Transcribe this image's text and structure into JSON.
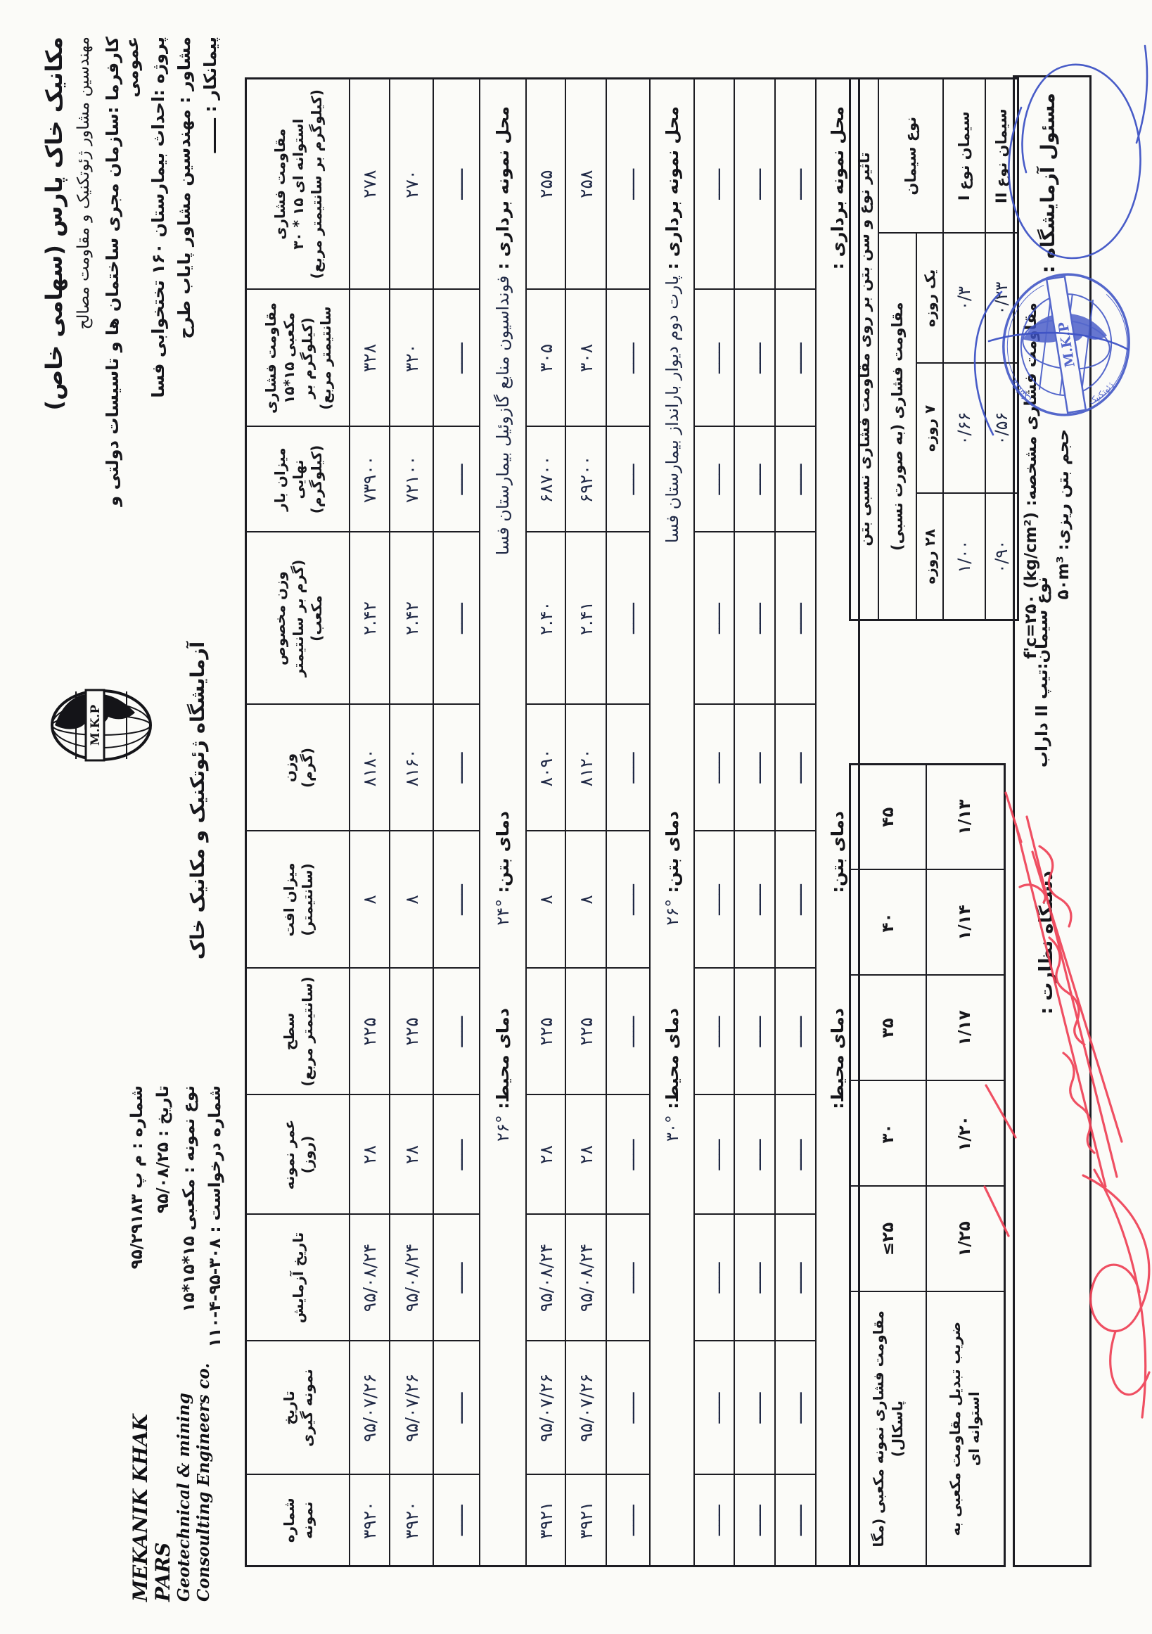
{
  "letterhead": {
    "company_fa": "مکانیک خاک پارس (سهامی خاص)",
    "tagline_fa": "مهندسین مشاور ژئوتکنیک و مقاومت مصالح",
    "client_line": "کارفرما :سازمان مجری ساختمان ها و تاسیسات دولتی و عمومی",
    "project_line": "پروژه :احداث بیمارستان ۱۶۰ تختخوابی فسا",
    "consultant_line": "مشاور : مهندسین مشاور پایاب طرح",
    "contractor_line": "پیمانکار : ــــــ",
    "lab_title": "آزمایشگاه ژئوتکنیک و مکانیک خاک",
    "logo_monogram": "M.K.P",
    "company_en1": "MEKANIK KHAK PARS",
    "company_en2": "Geotechnical & mining",
    "company_en3": "Consoulting Engineers co.",
    "meta_number": "شماره : م پ ۹۵/۲۹۱۸۳",
    "meta_date": "تاریخ : ۹۵/۰۸/۲۵",
    "meta_sample_type": "نوع نمونه : مکعبی ۱۵*۱۵*۱۵",
    "meta_request": "شماره درخواست : ۳۰۸-۹۵-۴-۱۱۰"
  },
  "main_table": {
    "headers": [
      [
        "مقاومت فشاری",
        "استوانه ای ۱۵ * ۳۰",
        "(کیلوگرم بر سانتیمتر مربع)"
      ],
      [
        "مقاومت فشاری",
        "مکعبی ۱۵*۱۵",
        "(کیلوگرم بر سانتیمتر مربع)"
      ],
      [
        "میزان بار نهایی",
        "(کیلوگرم)"
      ],
      [
        "وزن مخصوص",
        "(گرم بر سانتیمتر مکعب)"
      ],
      [
        "وزن",
        "(گرم)"
      ],
      [
        "میزان افت",
        "(سانتیمتر)"
      ],
      [
        "سطح",
        "(سانتیمتر مربع)"
      ],
      [
        "عمر نمونه",
        "(روز)"
      ],
      [
        "تاریخ آزمایش"
      ],
      [
        "تاریخ",
        "نمونه گیری"
      ],
      [
        "شماره نمونه"
      ]
    ],
    "dash": "ــــــ",
    "location_label": "محل نمونه برداری :",
    "concrete_temp_label": "دمای بتن:",
    "ambient_temp_label": "دمای محیط:",
    "sections": [
      {
        "rows": [
          [
            "۲۷۸",
            "۳۲۸",
            "۷۳۹۰۰",
            "۲.۴۲",
            "۸۱۸۰",
            "۸",
            "۲۲۵",
            "۲۸",
            "۹۵/۰۸/۲۴",
            "۹۵/۰۷/۲۶",
            "۳۹۲۰"
          ],
          [
            "۲۷۰",
            "۳۲۰",
            "۷۲۱۰۰",
            "۲.۴۲",
            "۸۱۶۰",
            "۸",
            "۲۲۵",
            "۲۸",
            "۹۵/۰۸/۲۴",
            "۹۵/۰۷/۲۶",
            "۳۹۲۰"
          ],
          "dash"
        ],
        "location": "فونداسیون منابع گازوئیل بیمارستان فسا",
        "concrete_temp": "°۲۴",
        "ambient_temp": "°۲۶"
      },
      {
        "rows": [
          [
            "۲۵۵",
            "۳۰۵",
            "۶۸۷۰۰",
            "۲.۴۰",
            "۸۰۹۰",
            "۸",
            "۲۲۵",
            "۲۸",
            "۹۵/۰۸/۲۴",
            "۹۵/۰۷/۲۶",
            "۳۹۲۱"
          ],
          [
            "۲۵۸",
            "۳۰۸",
            "۶۹۲۰۰",
            "۲.۴۱",
            "۸۱۲۰",
            "۸",
            "۲۲۵",
            "۲۸",
            "۹۵/۰۸/۲۴",
            "۹۵/۰۷/۲۶",
            "۳۹۲۱"
          ],
          "dash"
        ],
        "location": "پارت دوم دیوار بارانداز بیمارستان فسا",
        "concrete_temp": "°۲۶",
        "ambient_temp": "°۳۰"
      },
      {
        "rows": [
          "dash",
          "dash",
          "dash"
        ],
        "location": "",
        "concrete_temp": "",
        "ambient_temp": ""
      }
    ]
  },
  "cement_table": {
    "title": "تاثیر نوع و سن بتن بر روی مقاومت فشاری نسبی بتن",
    "type_header": "نوع سیمان",
    "strength_header": "مقاومت فشاری (به صورت نسبی)",
    "age_headers": [
      "یک روزه",
      "۷ روزه",
      "۲۸ روزه"
    ],
    "rows": [
      {
        "label": "سیمان نوع I",
        "values": [
          "۰/۳",
          "۰/۶۶",
          "۱/۰۰"
        ]
      },
      {
        "label": "سیمان نوع II",
        "values": [
          "۰/۲۳",
          "۰/۵۶",
          "۰/۹۰"
        ]
      }
    ]
  },
  "conversion_table": {
    "row1_label": "مقاومت فشاری نمونه مکعبی (مگا پاسکال)",
    "row1_values": [
      "≤۲۵",
      "۳۰",
      "۳۵",
      "۴۰",
      "۴۵"
    ],
    "row2_label": "ضریب تبدیل مقاومت مکعبی به استوانه ای",
    "row2_values": [
      "۱/۲۵",
      "۱/۲۰",
      "۱/۱۷",
      "۱/۱۴",
      "۱/۱۳"
    ]
  },
  "footer": {
    "lab_responsible": "مسئول آزمایشگاه :",
    "char_strength": "مقاومت فشاری مشخصه:  f'c=۲۵۰ (kg/cm²)",
    "volume": "حجم بتن ریزی: ۵۰m³",
    "cement_type": "نوع سیمان:تیپ II داراب",
    "supervision": "دستگاه نظارت :"
  }
}
